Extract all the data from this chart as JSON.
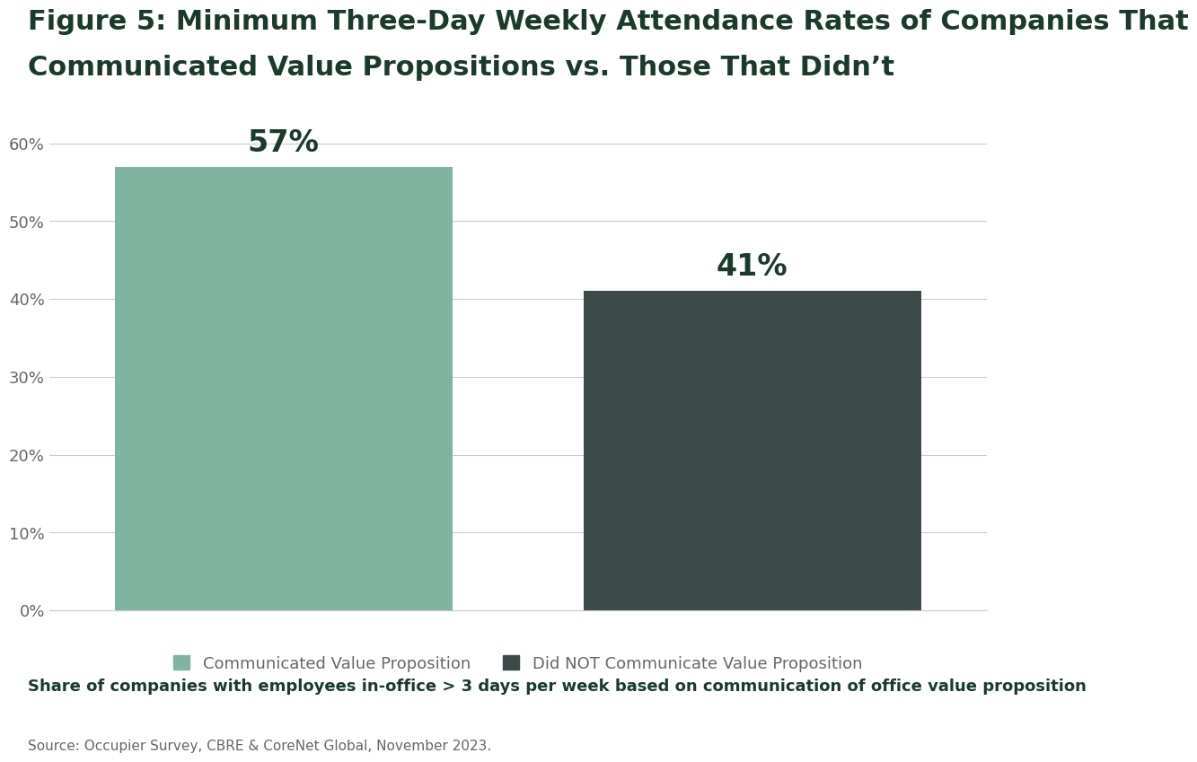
{
  "title_line1": "Figure 5: Minimum Three-Day Weekly Attendance Rates of Companies That",
  "title_line2": "Communicated Value Propositions vs. Those That Didn’t",
  "values": [
    57,
    41
  ],
  "bar_colors": [
    "#7fb5a0",
    "#3d4a4a"
  ],
  "bar_labels": [
    "57%",
    "41%"
  ],
  "legend_labels": [
    "Communicated Value Proposition",
    "Did NOT Communicate Value Proposition"
  ],
  "footnote": "Share of companies with employees in-office > 3 days per week based on communication of office value proposition",
  "source": "Source: Occupier Survey, CBRE & CoreNet Global, November 2023.",
  "ylim": [
    0,
    65
  ],
  "yticks": [
    0,
    10,
    20,
    30,
    40,
    50,
    60
  ],
  "title_color": "#1a3a2a",
  "tick_color": "#666666",
  "grid_color": "#cccccc",
  "bar_label_fontsize": 24,
  "title_fontsize": 22,
  "footnote_fontsize": 13,
  "source_fontsize": 11,
  "legend_fontsize": 13,
  "ytick_fontsize": 13,
  "background_color": "#ffffff"
}
